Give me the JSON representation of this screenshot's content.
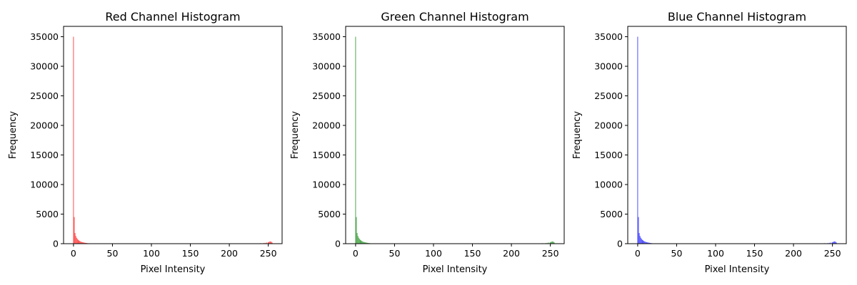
{
  "chart_data": [
    {
      "type": "bar",
      "title": "Red Channel Histogram",
      "xlabel": "Pixel Intensity",
      "ylabel": "Frequency",
      "color": "#ff0000",
      "xlim": [
        -12.75,
        267.75
      ],
      "ylim": [
        0,
        36750
      ],
      "xticks": [
        0,
        50,
        100,
        150,
        200,
        250
      ],
      "yticks": [
        0,
        5000,
        10000,
        15000,
        20000,
        25000,
        30000,
        35000
      ],
      "grid": false,
      "series": [
        {
          "x": [
            0,
            1,
            2,
            3,
            4,
            5,
            6,
            7,
            8,
            9,
            10,
            11,
            12,
            13,
            14,
            15,
            16,
            17,
            18,
            19,
            20,
            25,
            30,
            40,
            113,
            230,
            235,
            240,
            244,
            246,
            248,
            250,
            251,
            252,
            253,
            254,
            255
          ],
          "values": [
            35000,
            4500,
            1800,
            1300,
            1000,
            800,
            650,
            550,
            450,
            380,
            320,
            270,
            230,
            200,
            170,
            150,
            120,
            100,
            80,
            70,
            60,
            40,
            30,
            20,
            60,
            40,
            60,
            80,
            100,
            150,
            200,
            250,
            300,
            350,
            400,
            300,
            200
          ]
        }
      ]
    },
    {
      "type": "bar",
      "title": "Green Channel Histogram",
      "xlabel": "Pixel Intensity",
      "ylabel": "Frequency",
      "color": "#008000",
      "xlim": [
        -12.75,
        267.75
      ],
      "ylim": [
        0,
        36750
      ],
      "xticks": [
        0,
        50,
        100,
        150,
        200,
        250
      ],
      "yticks": [
        0,
        5000,
        10000,
        15000,
        20000,
        25000,
        30000,
        35000
      ],
      "grid": false,
      "series": [
        {
          "x": [
            0,
            1,
            2,
            3,
            4,
            5,
            6,
            7,
            8,
            9,
            10,
            11,
            12,
            13,
            14,
            15,
            16,
            17,
            18,
            19,
            20,
            25,
            30,
            40,
            113,
            230,
            235,
            240,
            244,
            246,
            248,
            250,
            251,
            252,
            253,
            254,
            255
          ],
          "values": [
            35000,
            4500,
            1800,
            1300,
            1000,
            800,
            650,
            550,
            450,
            380,
            320,
            270,
            230,
            200,
            170,
            150,
            120,
            100,
            80,
            70,
            60,
            40,
            30,
            20,
            60,
            40,
            60,
            80,
            100,
            150,
            200,
            250,
            300,
            350,
            400,
            300,
            200
          ]
        }
      ]
    },
    {
      "type": "bar",
      "title": "Blue Channel Histogram",
      "xlabel": "Pixel Intensity",
      "ylabel": "Frequency",
      "color": "#0000ff",
      "xlim": [
        -12.75,
        267.75
      ],
      "ylim": [
        0,
        36750
      ],
      "xticks": [
        0,
        50,
        100,
        150,
        200,
        250
      ],
      "yticks": [
        0,
        5000,
        10000,
        15000,
        20000,
        25000,
        30000,
        35000
      ],
      "grid": false,
      "series": [
        {
          "x": [
            0,
            1,
            2,
            3,
            4,
            5,
            6,
            7,
            8,
            9,
            10,
            11,
            12,
            13,
            14,
            15,
            16,
            17,
            18,
            19,
            20,
            25,
            30,
            40,
            113,
            230,
            235,
            240,
            244,
            246,
            248,
            250,
            251,
            252,
            253,
            254,
            255
          ],
          "values": [
            35000,
            4500,
            1800,
            1300,
            1000,
            800,
            650,
            550,
            450,
            380,
            320,
            270,
            230,
            200,
            170,
            150,
            120,
            100,
            80,
            70,
            60,
            40,
            30,
            20,
            60,
            40,
            60,
            80,
            100,
            150,
            200,
            250,
            300,
            350,
            400,
            300,
            200
          ]
        }
      ]
    }
  ]
}
